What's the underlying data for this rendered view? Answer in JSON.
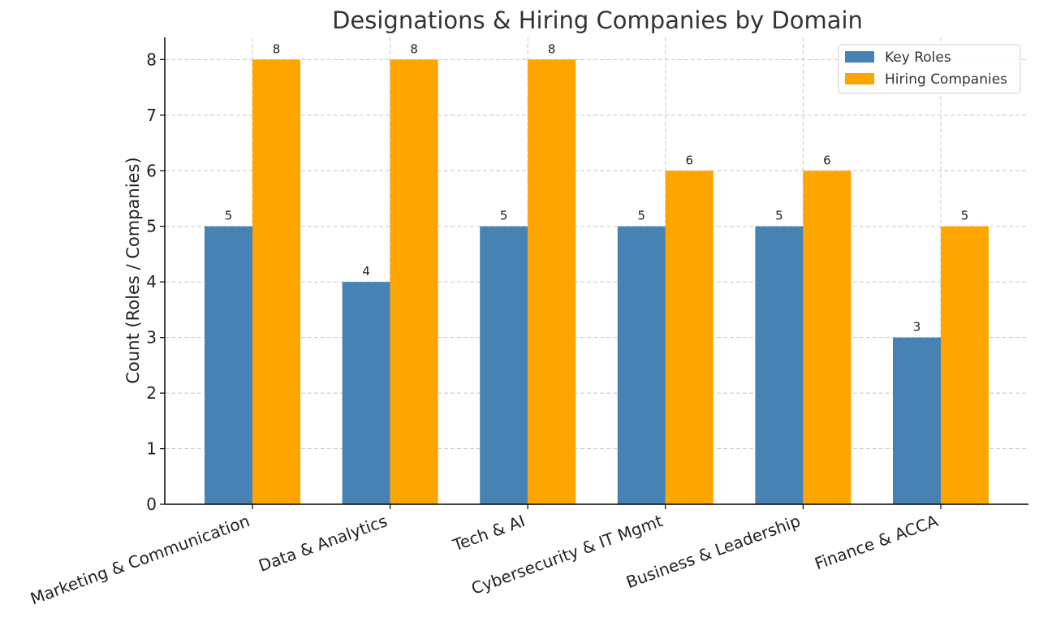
{
  "chart_data": {
    "type": "bar",
    "title": "Designations & Hiring Companies by Domain",
    "xlabel": "",
    "ylabel": "Count (Roles / Companies)",
    "categories": [
      "Marketing & Communication",
      "Data & Analytics",
      "Tech & AI",
      "Cybersecurity & IT Mgmt",
      "Business & Leadership",
      "Finance & ACCA"
    ],
    "series": [
      {
        "name": "Key Roles",
        "color": "#4682b4",
        "values": [
          5,
          4,
          5,
          5,
          5,
          3
        ]
      },
      {
        "name": "Hiring Companies",
        "color": "#ffa500",
        "values": [
          8,
          8,
          8,
          6,
          6,
          5
        ]
      }
    ],
    "ylim": [
      0,
      8.4
    ],
    "yticks": [
      0,
      1,
      2,
      3,
      4,
      5,
      6,
      7,
      8
    ],
    "grid": true,
    "legend_position": "top-right",
    "data_labels": true
  }
}
